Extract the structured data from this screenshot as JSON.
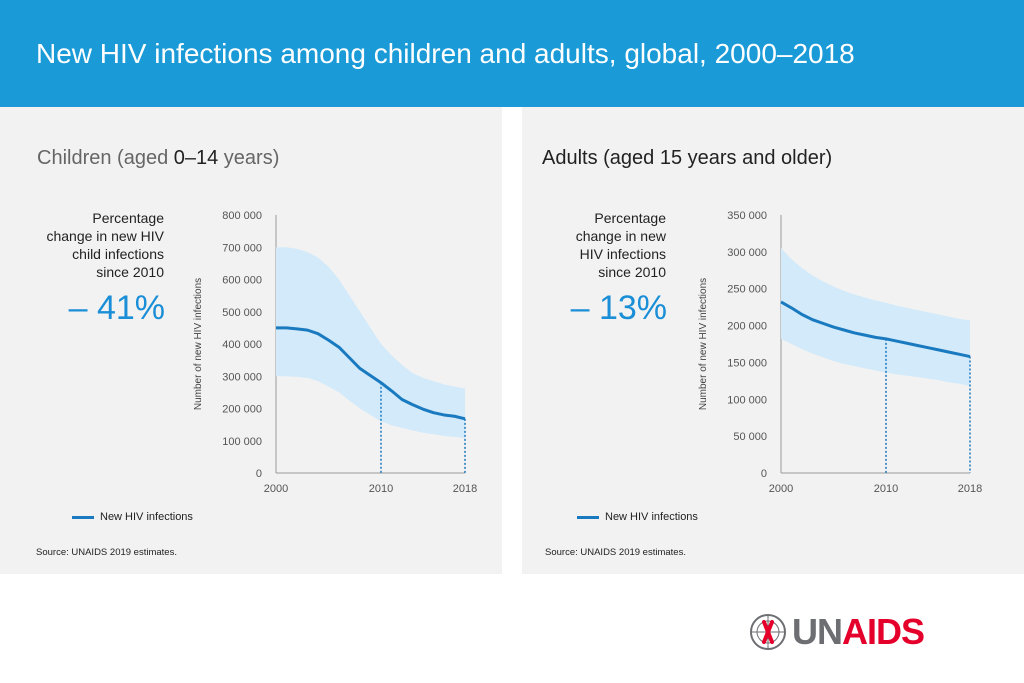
{
  "header": {
    "title": "New HIV infections among children and adults, global, 2000–2018",
    "color": "#1a9ad7"
  },
  "charts": [
    {
      "panel_title_muted_a": "Children (aged ",
      "panel_title_strong": "0–14",
      "panel_title_muted_b": " years)",
      "pct_label_lines": [
        "Percentage",
        "change in new HIV",
        "child infections",
        "since 2010"
      ],
      "pct_value": "– 41%",
      "legend": "New HIV infections",
      "source": "Source: UNAIDS 2019 estimates."
    },
    {
      "panel_title": "Adults (aged 15 years and older)",
      "pct_label_lines": [
        "Percentage",
        "change in new",
        "HIV infections",
        "since 2010"
      ],
      "pct_value": "– 13%",
      "legend": "New HIV infections",
      "source": "Source: UNAIDS 2019 estimates."
    }
  ],
  "chart_data": [
    {
      "type": "area",
      "title": "Children (aged 0–14 years)",
      "ylabel": "Number of new HIV infections",
      "xlabel": "",
      "ylim": [
        0,
        800000
      ],
      "yticks": [
        0,
        100000,
        200000,
        300000,
        400000,
        500000,
        600000,
        700000,
        800000
      ],
      "ytick_labels": [
        "0",
        "100 000",
        "200 000",
        "300 000",
        "400 000",
        "500 000",
        "600 000",
        "700 000",
        "800 000"
      ],
      "xticks": [
        2000,
        2010,
        2018
      ],
      "x": [
        2000,
        2001,
        2002,
        2003,
        2004,
        2005,
        2006,
        2007,
        2008,
        2009,
        2010,
        2011,
        2012,
        2013,
        2014,
        2015,
        2016,
        2017,
        2018
      ],
      "series": [
        {
          "name": "New HIV infections",
          "values": [
            450000,
            450000,
            447000,
            443000,
            432000,
            412000,
            390000,
            357000,
            324000,
            302000,
            280000,
            255000,
            228000,
            212000,
            198000,
            187000,
            180000,
            176000,
            168000
          ]
        },
        {
          "name": "Upper bound",
          "values": [
            700000,
            700000,
            695000,
            685000,
            668000,
            640000,
            600000,
            550000,
            500000,
            450000,
            400000,
            365000,
            335000,
            310000,
            295000,
            285000,
            275000,
            268000,
            262000
          ]
        },
        {
          "name": "Lower bound",
          "values": [
            300000,
            300000,
            298000,
            295000,
            285000,
            268000,
            250000,
            225000,
            200000,
            180000,
            160000,
            148000,
            140000,
            132000,
            125000,
            120000,
            115000,
            112000,
            108000
          ]
        }
      ],
      "markers": [
        2010,
        2018
      ],
      "legend": "New HIV infections",
      "colors": {
        "line": "#1a7ac0",
        "band": "#d2eafa",
        "marker": "#1a7ac0"
      }
    },
    {
      "type": "area",
      "title": "Adults (aged 15 years and older)",
      "ylabel": "Number of new HIV infections",
      "xlabel": "",
      "ylim": [
        0,
        350000
      ],
      "yticks": [
        0,
        50000,
        100000,
        150000,
        200000,
        250000,
        300000,
        350000
      ],
      "ytick_labels": [
        "0",
        "50 000",
        "100 000",
        "150 000",
        "200 000",
        "250 000",
        "300 000",
        "350 000"
      ],
      "xticks": [
        2000,
        2010,
        2018
      ],
      "x": [
        2000,
        2001,
        2002,
        2003,
        2004,
        2005,
        2006,
        2007,
        2008,
        2009,
        2010,
        2011,
        2012,
        2013,
        2014,
        2015,
        2016,
        2017,
        2018
      ],
      "series": [
        {
          "name": "New HIV infections",
          "values": [
            232000,
            224000,
            215000,
            208000,
            203000,
            198000,
            194000,
            190000,
            187000,
            184000,
            182000,
            179000,
            176000,
            173000,
            170000,
            167000,
            164000,
            161000,
            158000
          ]
        },
        {
          "name": "Upper bound",
          "values": [
            305000,
            290000,
            278000,
            268000,
            260000,
            253000,
            247000,
            242000,
            238000,
            234000,
            231000,
            227000,
            224000,
            221000,
            218000,
            215000,
            212000,
            209000,
            207000
          ]
        },
        {
          "name": "Lower bound",
          "values": [
            182000,
            175000,
            168000,
            162000,
            157000,
            152000,
            148000,
            145000,
            142000,
            139000,
            136000,
            134000,
            132000,
            130000,
            128000,
            126000,
            123000,
            121000,
            118000
          ]
        }
      ],
      "markers": [
        2010,
        2018
      ],
      "legend": "New HIV infections",
      "colors": {
        "line": "#1a7ac0",
        "band": "#d2eafa",
        "marker": "#1a7ac0"
      }
    }
  ],
  "logo": {
    "text_un": "UN",
    "text_aids": "AIDS",
    "color": "#e4002b"
  }
}
